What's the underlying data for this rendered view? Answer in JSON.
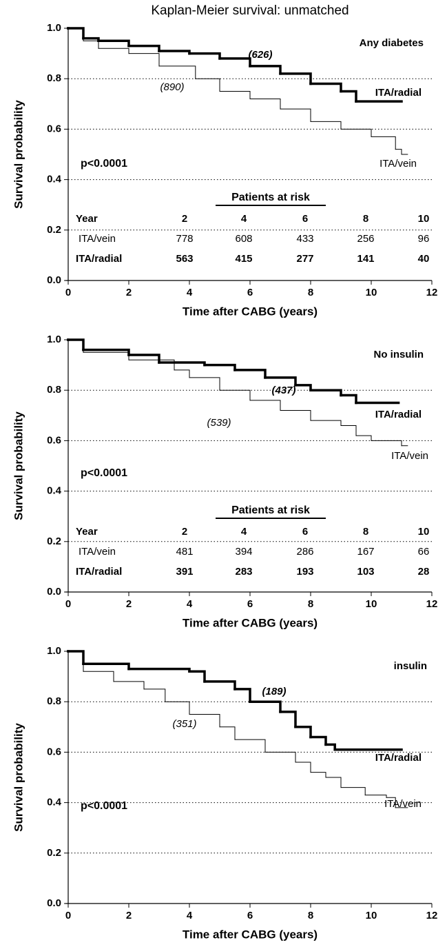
{
  "title": "Kaplan-Meier survival: unmatched",
  "chart_data": [
    {
      "type": "line",
      "step": true,
      "panel_label": "Any diabetes",
      "p_value": "p<0.0001",
      "xlabel": "Time after CABG  (years)",
      "ylabel": "Survival probability",
      "xlim": [
        0,
        12
      ],
      "xticks": [
        0,
        2,
        4,
        6,
        8,
        10,
        12
      ],
      "ylim": [
        0,
        1
      ],
      "yticks": [
        {
          "value": 0,
          "label": "0.0"
        },
        {
          "value": 0.2,
          "label": "0.2"
        },
        {
          "value": 0.4,
          "label": "0.4"
        },
        {
          "value": 0.6,
          "label": "0.6"
        },
        {
          "value": 0.8,
          "label": "0.8"
        },
        {
          "value": 1,
          "label": "1.0"
        }
      ],
      "grid": true,
      "series": [
        {
          "name": "ITA/radial",
          "color": "#000000",
          "count_label": "(626)",
          "x": [
            0,
            0.5,
            1,
            2,
            3,
            4,
            5,
            6,
            7,
            8,
            9,
            9.5,
            11
          ],
          "values": [
            1,
            0.96,
            0.95,
            0.93,
            0.91,
            0.9,
            0.88,
            0.85,
            0.82,
            0.78,
            0.75,
            0.71,
            0.71
          ]
        },
        {
          "name": "ITA/vein",
          "color": "#000000",
          "count_label": "(890)",
          "x": [
            0,
            0.5,
            1,
            2,
            3,
            4.2,
            5,
            6,
            7,
            8,
            9,
            10,
            10.8,
            11,
            11.2
          ],
          "values": [
            1,
            0.95,
            0.92,
            0.9,
            0.85,
            0.8,
            0.75,
            0.72,
            0.68,
            0.63,
            0.6,
            0.57,
            0.52,
            0.5,
            0.5
          ]
        }
      ],
      "risk_table": {
        "title": "Patients at risk",
        "year_label": "Year",
        "years": [
          2,
          4,
          6,
          8,
          10
        ],
        "rows": [
          {
            "name": "ITA/vein",
            "values": [
              778,
              608,
              433,
              256,
              96
            ]
          },
          {
            "name": "ITA/radial",
            "values": [
              563,
              415,
              277,
              141,
              40
            ]
          }
        ]
      }
    },
    {
      "type": "line",
      "step": true,
      "panel_label": "No insulin",
      "p_value": "p<0.0001",
      "xlabel": "Time after CABG  (years)",
      "ylabel": "Survival probability",
      "xlim": [
        0,
        12
      ],
      "xticks": [
        0,
        2,
        4,
        6,
        8,
        10,
        12
      ],
      "ylim": [
        0,
        1
      ],
      "yticks": [
        {
          "value": 0,
          "label": "0.0"
        },
        {
          "value": 0.2,
          "label": "0.2"
        },
        {
          "value": 0.4,
          "label": "0.4"
        },
        {
          "value": 0.6,
          "label": "0.6"
        },
        {
          "value": 0.8,
          "label": "0.8"
        },
        {
          "value": 1,
          "label": "1.0"
        }
      ],
      "grid": true,
      "series": [
        {
          "name": "ITA/radial",
          "color": "#000000",
          "count_label": "(437)",
          "x": [
            0,
            0.5,
            2,
            3,
            4.5,
            5.5,
            6.5,
            7.5,
            8,
            9,
            9.5,
            10.9
          ],
          "values": [
            1,
            0.96,
            0.94,
            0.91,
            0.9,
            0.88,
            0.85,
            0.82,
            0.8,
            0.78,
            0.75,
            0.75
          ]
        },
        {
          "name": "ITA/vein",
          "color": "#000000",
          "count_label": "(539)",
          "x": [
            0,
            0.5,
            2,
            3.5,
            4,
            5,
            6,
            7,
            8,
            9,
            9.5,
            10,
            11,
            11.2
          ],
          "values": [
            1,
            0.95,
            0.92,
            0.88,
            0.85,
            0.8,
            0.76,
            0.72,
            0.68,
            0.66,
            0.62,
            0.6,
            0.58,
            0.58
          ]
        }
      ],
      "risk_table": {
        "title": "Patients at risk",
        "year_label": "Year",
        "years": [
          2,
          4,
          6,
          8,
          10
        ],
        "rows": [
          {
            "name": "ITA/vein",
            "values": [
              481,
              394,
              286,
              167,
              66
            ]
          },
          {
            "name": "ITA/radial",
            "values": [
              391,
              283,
              193,
              103,
              28
            ]
          }
        ]
      }
    },
    {
      "type": "line",
      "step": true,
      "panel_label": "insulin",
      "p_value": "p<0.0001",
      "xlabel": "Time after CABG  (years)",
      "ylabel": "Survival probability",
      "xlim": [
        0,
        12
      ],
      "xticks": [
        0,
        2,
        4,
        6,
        8,
        10,
        12
      ],
      "ylim": [
        0,
        1
      ],
      "yticks": [
        {
          "value": 0,
          "label": "0.0"
        },
        {
          "value": 0.2,
          "label": "0.2"
        },
        {
          "value": 0.4,
          "label": "0.4"
        },
        {
          "value": 0.6,
          "label": "0.6"
        },
        {
          "value": 0.8,
          "label": "0.8"
        },
        {
          "value": 1,
          "label": "1.0"
        }
      ],
      "grid": true,
      "series": [
        {
          "name": "ITA/radial",
          "color": "#000000",
          "count_label": "(189)",
          "x": [
            0,
            0.5,
            2,
            4,
            4.5,
            5.5,
            6,
            7,
            7.5,
            8,
            8.5,
            8.8,
            11
          ],
          "values": [
            1,
            0.95,
            0.93,
            0.92,
            0.88,
            0.85,
            0.8,
            0.76,
            0.7,
            0.66,
            0.63,
            0.61,
            0.61
          ]
        },
        {
          "name": "ITA/vein",
          "color": "#000000",
          "count_label": "(351)",
          "x": [
            0,
            0.5,
            1.5,
            2.5,
            3.2,
            4,
            5,
            5.5,
            6.5,
            7.5,
            8,
            8.5,
            9,
            9.8,
            10.5,
            10.8,
            11.2
          ],
          "values": [
            1,
            0.92,
            0.88,
            0.85,
            0.8,
            0.75,
            0.7,
            0.65,
            0.6,
            0.56,
            0.52,
            0.5,
            0.46,
            0.43,
            0.42,
            0.38,
            0.38
          ]
        }
      ]
    }
  ]
}
